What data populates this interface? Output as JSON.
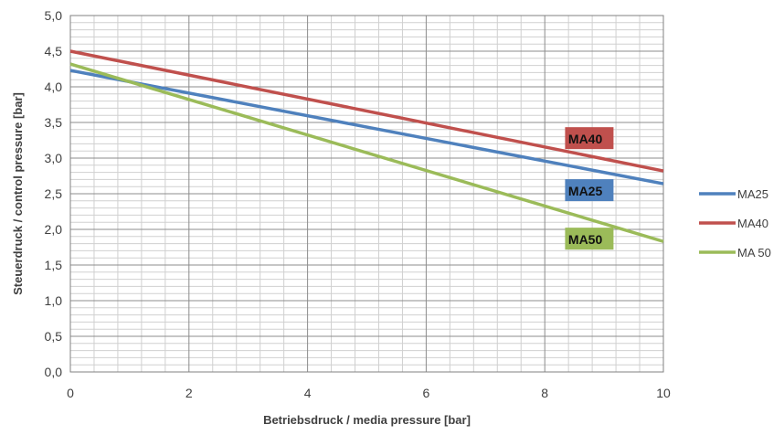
{
  "chart_data": {
    "type": "line",
    "title": "",
    "xlabel": "Betriebsdruck / media pressure [bar]",
    "ylabel": "Steuerdruck  / control pressure [bar]",
    "xlim": [
      0,
      10
    ],
    "ylim": [
      0,
      5
    ],
    "x_ticks": [
      0,
      2,
      4,
      6,
      8,
      10
    ],
    "x_tick_labels": [
      "0",
      "2",
      "4",
      "6",
      "8",
      "10"
    ],
    "y_ticks": [
      0,
      0.5,
      1,
      1.5,
      2,
      2.5,
      3,
      3.5,
      4,
      4.5,
      5
    ],
    "y_tick_labels": [
      "0,0",
      "0,5",
      "1,0",
      "1,5",
      "2,0",
      "2,5",
      "3,0",
      "3,5",
      "4,0",
      "4,5",
      "5,0"
    ],
    "grid": true,
    "legend_position": "right",
    "series": [
      {
        "name": "MA25",
        "color": "#4f81bd",
        "x": [
          0,
          10
        ],
        "values": [
          4.23,
          2.64
        ],
        "tag": "MA25",
        "tag_at": [
          8.35,
          2.55
        ]
      },
      {
        "name": "MA40",
        "color": "#c0504d",
        "x": [
          0,
          10
        ],
        "values": [
          4.5,
          2.82
        ],
        "tag": "MA40",
        "tag_at": [
          8.35,
          3.28
        ]
      },
      {
        "name": "MA 50",
        "color": "#9bbb59",
        "x": [
          0,
          10
        ],
        "values": [
          4.32,
          1.83
        ],
        "tag": "MA50",
        "tag_at": [
          8.35,
          1.87
        ]
      }
    ]
  }
}
